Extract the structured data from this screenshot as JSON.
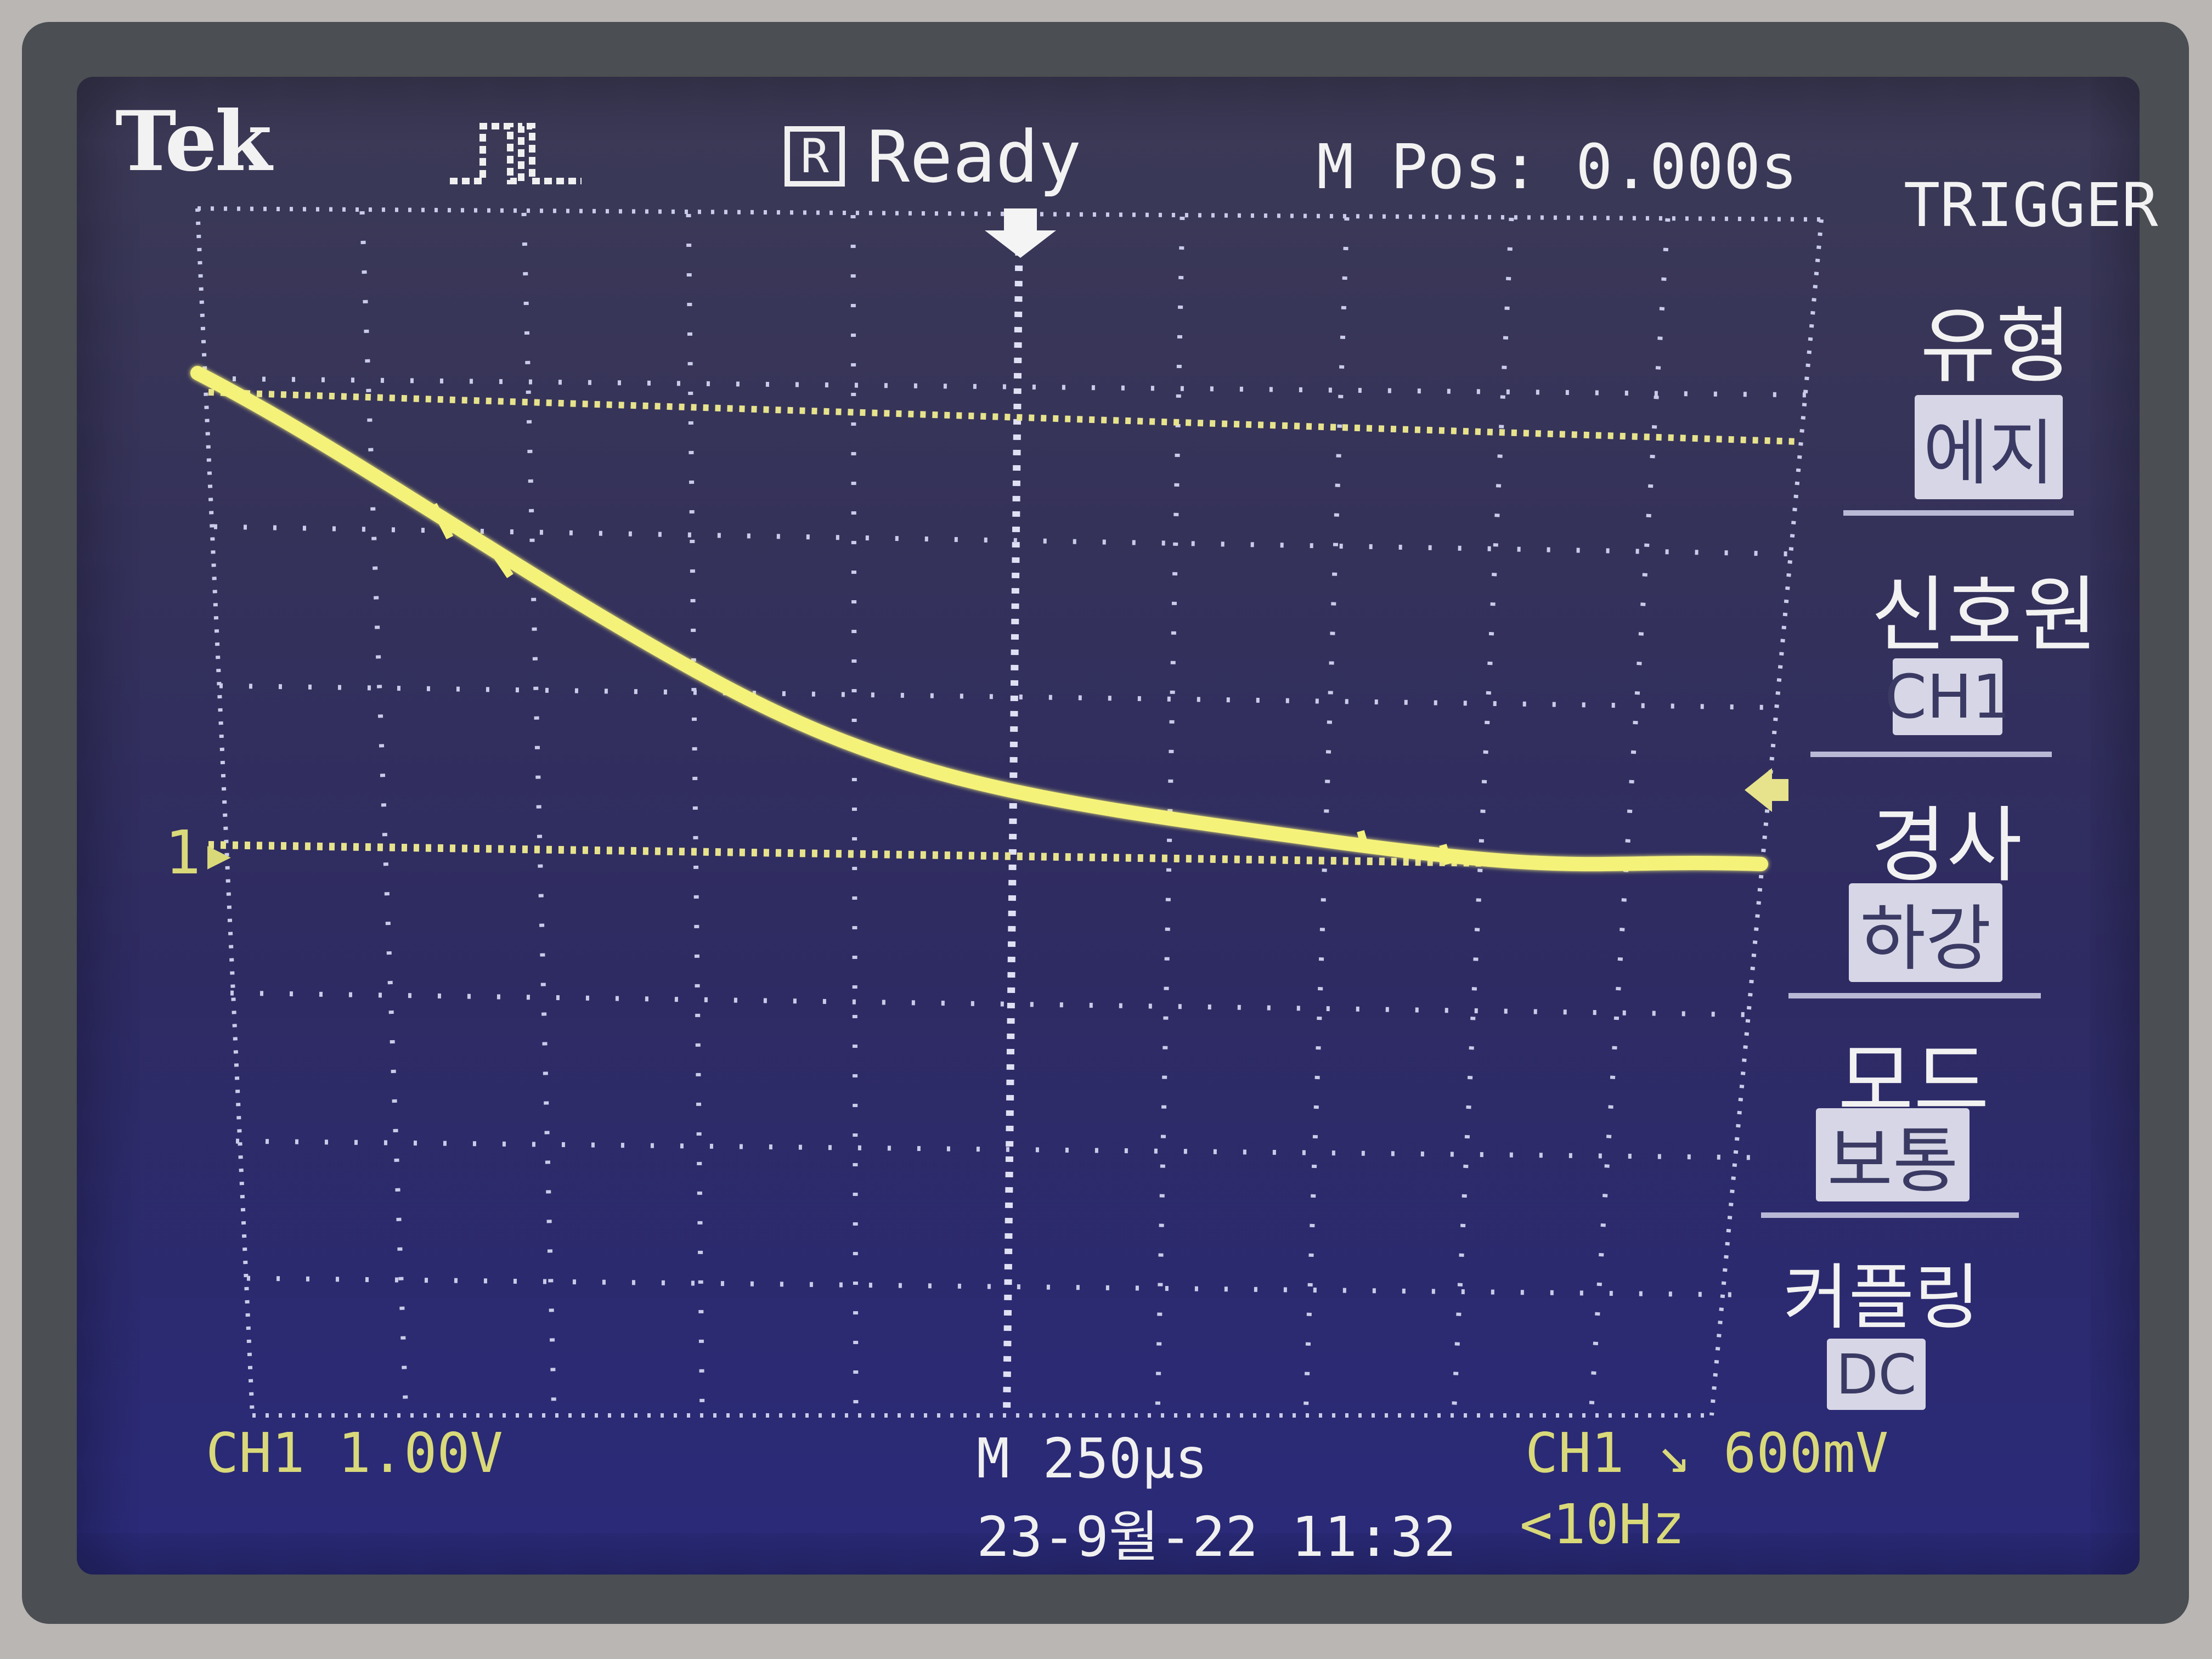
{
  "header": {
    "brand": "Tek",
    "status_icon": "R",
    "status": "Ready",
    "m_pos": "M Pos: 0.000s"
  },
  "menu": {
    "title": "TRIGGER",
    "items": [
      {
        "label": "유형",
        "value": "에지"
      },
      {
        "label": "신호원",
        "value": "CH1"
      },
      {
        "label": "경사",
        "value": "하강"
      },
      {
        "label": "모드",
        "value": "보통"
      },
      {
        "label": "커플링",
        "value": "DC"
      }
    ]
  },
  "footer": {
    "ch1_scale": "CH1  1.00V",
    "timebase": "M 250μs",
    "trigger_info": "CH1 ↘ 600mV",
    "datetime": "23-9월-22 11:32",
    "frequency": "<10Hz"
  },
  "markers": {
    "channel_marker": "1"
  },
  "colors": {
    "trace": "#f5f27a",
    "grid": "#c9cbe8",
    "screen": "#2e2b63",
    "menu_value_bg": "#d6d6e6"
  },
  "icons": {
    "acquisition": "pulse-icon",
    "trigger_position": "down-arrow-icon",
    "trigger_level": "left-arrow-icon"
  }
}
